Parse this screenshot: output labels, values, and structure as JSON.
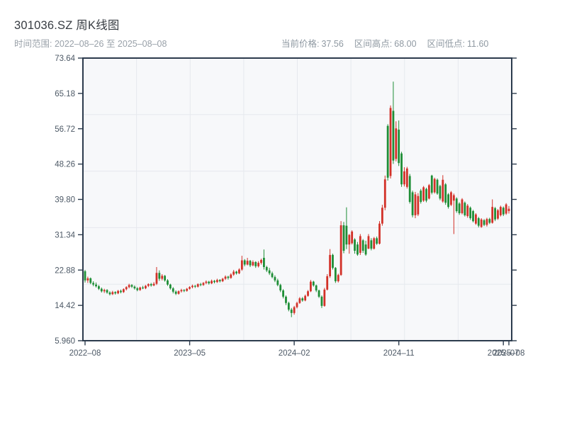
{
  "header": {
    "title": "301036.SZ 周K线图",
    "subtitle": "时间范围: 2022–08–26 至 2025–08–08",
    "stats": [
      {
        "label": "当前价格:",
        "value": "37.56"
      },
      {
        "label": "区间高点:",
        "value": "68.00"
      },
      {
        "label": "区间低点:",
        "value": "11.60"
      }
    ]
  },
  "colors": {
    "up": "#d23128",
    "down": "#1e8e36",
    "grid": "#e6e9ee",
    "plot_bg": "#f7f8fa",
    "spine": "#2c3b4d",
    "tick_label": "#4d5966",
    "title": "#373c42",
    "subtitle": "#99a1a9",
    "page_bg": "#ffffff"
  },
  "chart_data": {
    "type": "candlestick",
    "title": "301036.SZ 周K线图",
    "period": "weekly",
    "x_range_start": "2022-08-26",
    "x_range_end": "2025-08-08",
    "current_price": 37.56,
    "range_high": 68.0,
    "range_low": 11.6,
    "grid": {
      "v_divisions": 8,
      "h_divisions": 5
    },
    "y_axis": {
      "min": 5.96,
      "max": 73.64,
      "tick_labels": [
        "73.64",
        "65.18",
        "56.72",
        "48.26",
        "39.80",
        "31.34",
        "22.88",
        "14.42",
        "5.960"
      ]
    },
    "x_axis": {
      "tick_labels": [
        "2022–08",
        "2023–05",
        "2024–02",
        "2024–11",
        "2025–07",
        "2025–08"
      ],
      "tick_indices": [
        0,
        38,
        76,
        114,
        152,
        154
      ]
    },
    "candles_ohlc": [
      [
        22.6,
        22.9,
        19.9,
        20.4
      ],
      [
        20.4,
        21.3,
        19.8,
        20.9
      ],
      [
        20.9,
        21.1,
        19.5,
        19.8
      ],
      [
        19.8,
        20.2,
        19.0,
        19.4
      ],
      [
        19.4,
        19.9,
        18.7,
        19.0
      ],
      [
        19.0,
        19.3,
        18.1,
        18.4
      ],
      [
        18.4,
        18.7,
        17.5,
        17.8
      ],
      [
        17.8,
        18.4,
        17.4,
        18.1
      ],
      [
        18.1,
        18.3,
        17.2,
        17.5
      ],
      [
        17.5,
        17.8,
        16.8,
        17.1
      ],
      [
        17.1,
        17.9,
        16.9,
        17.6
      ],
      [
        17.6,
        17.8,
        17.0,
        17.3
      ],
      [
        17.3,
        18.1,
        17.1,
        17.9
      ],
      [
        17.9,
        18.2,
        17.3,
        17.6
      ],
      [
        17.6,
        18.5,
        17.4,
        18.3
      ],
      [
        18.3,
        19.0,
        18.0,
        18.8
      ],
      [
        18.8,
        19.6,
        18.5,
        19.3
      ],
      [
        19.3,
        19.5,
        18.6,
        18.9
      ],
      [
        18.9,
        19.2,
        18.2,
        18.5
      ],
      [
        18.5,
        18.8,
        17.8,
        18.1
      ],
      [
        18.1,
        18.9,
        17.9,
        18.7
      ],
      [
        18.7,
        19.1,
        18.3,
        18.5
      ],
      [
        18.5,
        19.3,
        18.3,
        19.1
      ],
      [
        19.1,
        19.7,
        18.8,
        19.5
      ],
      [
        19.5,
        19.8,
        18.9,
        19.2
      ],
      [
        19.2,
        20.0,
        19.0,
        19.6
      ],
      [
        19.6,
        23.6,
        19.3,
        22.2
      ],
      [
        22.2,
        22.8,
        20.3,
        20.8
      ],
      [
        20.8,
        21.9,
        20.4,
        21.5
      ],
      [
        21.5,
        21.7,
        20.1,
        20.4
      ],
      [
        20.4,
        20.7,
        19.1,
        19.4
      ],
      [
        19.4,
        19.6,
        18.2,
        18.5
      ],
      [
        18.5,
        18.8,
        17.3,
        17.7
      ],
      [
        17.7,
        18.0,
        16.9,
        17.2
      ],
      [
        17.2,
        18.0,
        17.0,
        17.8
      ],
      [
        17.8,
        18.4,
        17.5,
        18.1
      ],
      [
        18.1,
        18.3,
        17.6,
        17.9
      ],
      [
        17.9,
        18.6,
        17.7,
        18.4
      ],
      [
        18.4,
        19.0,
        18.2,
        18.8
      ],
      [
        18.8,
        19.4,
        18.5,
        19.1
      ],
      [
        19.1,
        19.3,
        18.6,
        18.9
      ],
      [
        18.9,
        19.7,
        18.7,
        19.5
      ],
      [
        19.5,
        19.8,
        19.0,
        19.3
      ],
      [
        19.3,
        20.0,
        19.1,
        19.8
      ],
      [
        19.8,
        20.4,
        19.5,
        20.1
      ],
      [
        20.1,
        20.3,
        19.4,
        19.7
      ],
      [
        19.7,
        20.6,
        19.5,
        20.3
      ],
      [
        20.3,
        20.5,
        19.7,
        20.0
      ],
      [
        20.0,
        20.8,
        19.8,
        20.5
      ],
      [
        20.5,
        20.7,
        19.9,
        20.2
      ],
      [
        20.2,
        21.0,
        20.0,
        20.8
      ],
      [
        20.8,
        21.6,
        20.5,
        21.3
      ],
      [
        21.3,
        21.5,
        20.6,
        21.0
      ],
      [
        21.0,
        22.1,
        20.8,
        21.8
      ],
      [
        21.8,
        22.9,
        21.5,
        22.5
      ],
      [
        22.5,
        22.7,
        21.8,
        22.1
      ],
      [
        22.1,
        23.3,
        21.9,
        23.0
      ],
      [
        23.0,
        26.3,
        22.7,
        25.2
      ],
      [
        25.2,
        25.5,
        23.8,
        24.2
      ],
      [
        24.2,
        25.8,
        24.0,
        25.1
      ],
      [
        25.1,
        25.3,
        23.6,
        24.0
      ],
      [
        24.0,
        25.2,
        23.8,
        24.8
      ],
      [
        24.8,
        25.0,
        23.4,
        23.8
      ],
      [
        23.8,
        25.0,
        23.5,
        24.6
      ],
      [
        24.6,
        25.6,
        24.2,
        25.3
      ],
      [
        25.8,
        27.8,
        23.0,
        23.6
      ],
      [
        23.6,
        23.9,
        22.4,
        22.8
      ],
      [
        22.8,
        23.4,
        21.7,
        22.1
      ],
      [
        22.1,
        22.5,
        20.9,
        21.2
      ],
      [
        21.2,
        21.6,
        20.0,
        20.4
      ],
      [
        20.4,
        20.8,
        19.0,
        19.3
      ],
      [
        19.3,
        19.6,
        17.6,
        18.0
      ],
      [
        18.0,
        18.3,
        16.1,
        16.5
      ],
      [
        16.5,
        16.8,
        14.5,
        15.0
      ],
      [
        15.0,
        15.3,
        13.0,
        13.4
      ],
      [
        13.4,
        13.8,
        11.6,
        12.6
      ],
      [
        12.6,
        14.3,
        12.2,
        14.0
      ],
      [
        14.0,
        15.3,
        13.7,
        15.0
      ],
      [
        15.0,
        16.4,
        14.8,
        16.1
      ],
      [
        16.1,
        16.4,
        15.3,
        15.6
      ],
      [
        15.6,
        17.0,
        15.4,
        16.7
      ],
      [
        16.7,
        18.1,
        16.5,
        17.8
      ],
      [
        17.8,
        20.5,
        17.6,
        20.1
      ],
      [
        20.1,
        20.3,
        18.9,
        19.2
      ],
      [
        19.2,
        19.4,
        17.6,
        18.0
      ],
      [
        18.0,
        18.2,
        16.2,
        16.5
      ],
      [
        16.5,
        16.8,
        13.8,
        14.3
      ],
      [
        14.3,
        18.6,
        14.1,
        18.2
      ],
      [
        18.2,
        21.9,
        18.0,
        21.4
      ],
      [
        21.4,
        27.9,
        21.0,
        26.5
      ],
      [
        26.5,
        26.8,
        23.0,
        23.4
      ],
      [
        23.4,
        23.6,
        19.8,
        20.2
      ],
      [
        20.2,
        22.0,
        19.9,
        21.7
      ],
      [
        21.7,
        34.6,
        21.5,
        33.6
      ],
      [
        33.6,
        34.4,
        26.9,
        27.5
      ],
      [
        33.5,
        37.9,
        27.9,
        29.0
      ],
      [
        29.0,
        31.5,
        26.8,
        31.3
      ],
      [
        29.3,
        32.4,
        29.0,
        32.1
      ],
      [
        30.2,
        30.5,
        26.8,
        27.5
      ],
      [
        29.0,
        29.6,
        26.3,
        26.6
      ],
      [
        27.0,
        31.5,
        26.5,
        31.0
      ],
      [
        30.0,
        30.3,
        27.0,
        27.5
      ],
      [
        29.0,
        29.9,
        26.3,
        26.6
      ],
      [
        28.0,
        31.5,
        27.9,
        31.0
      ],
      [
        30.0,
        30.5,
        27.6,
        28.0
      ],
      [
        28.0,
        30.8,
        27.8,
        30.5
      ],
      [
        30.5,
        30.9,
        28.9,
        29.2
      ],
      [
        29.2,
        34.6,
        29.0,
        34.0
      ],
      [
        34.0,
        38.5,
        33.5,
        37.8
      ],
      [
        37.8,
        45.5,
        37.2,
        44.6
      ],
      [
        57.4,
        57.8,
        44.3,
        45.0
      ],
      [
        45.4,
        62.3,
        44.8,
        61.7
      ],
      [
        61.0,
        68.0,
        48.3,
        49.1
      ],
      [
        49.5,
        58.5,
        48.9,
        56.8
      ],
      [
        56.5,
        58.7,
        47.8,
        48.5
      ],
      [
        50.8,
        51.2,
        42.8,
        43.4
      ],
      [
        43.4,
        47.5,
        42.9,
        46.5
      ],
      [
        42.8,
        47.6,
        42.4,
        47.2
      ],
      [
        45.4,
        45.9,
        38.8,
        39.2
      ],
      [
        41.5,
        41.9,
        35.5,
        36.0
      ],
      [
        36.0,
        41.6,
        35.3,
        41.0
      ],
      [
        36.2,
        41.3,
        35.8,
        40.6
      ],
      [
        41.9,
        42.3,
        38.8,
        39.2
      ],
      [
        39.5,
        43.0,
        39.2,
        42.7
      ],
      [
        42.3,
        42.6,
        39.1,
        39.5
      ],
      [
        40.0,
        43.5,
        39.8,
        43.2
      ],
      [
        45.5,
        45.7,
        41.0,
        41.4
      ],
      [
        41.5,
        45.0,
        41.2,
        44.7
      ],
      [
        44.5,
        44.8,
        40.9,
        41.2
      ],
      [
        43.0,
        43.3,
        39.6,
        40.0
      ],
      [
        39.3,
        45.6,
        39.0,
        44.5
      ],
      [
        43.4,
        43.7,
        38.5,
        39.0
      ],
      [
        41.0,
        41.3,
        37.6,
        38.0
      ],
      [
        38.5,
        41.8,
        38.2,
        41.5
      ],
      [
        39.5,
        41.2,
        31.5,
        40.8
      ],
      [
        40.0,
        40.3,
        36.6,
        37.0
      ],
      [
        38.8,
        39.1,
        36.1,
        36.5
      ],
      [
        36.5,
        40.1,
        36.2,
        39.8
      ],
      [
        39.0,
        39.3,
        35.7,
        36.0
      ],
      [
        35.8,
        38.7,
        35.4,
        38.3
      ],
      [
        37.8,
        38.1,
        34.9,
        35.3
      ],
      [
        37.0,
        37.3,
        34.3,
        34.6
      ],
      [
        34.0,
        36.5,
        33.7,
        36.2
      ],
      [
        35.3,
        35.6,
        33.1,
        33.5
      ],
      [
        33.2,
        35.3,
        33.0,
        35.0
      ],
      [
        34.8,
        35.1,
        33.4,
        33.7
      ],
      [
        33.7,
        35.4,
        33.3,
        35.1
      ],
      [
        35.1,
        35.4,
        33.9,
        34.2
      ],
      [
        34.2,
        39.8,
        34.0,
        38.0
      ],
      [
        37.7,
        38.0,
        34.6,
        35.0
      ],
      [
        35.2,
        37.5,
        34.9,
        37.2
      ],
      [
        36.0,
        38.3,
        35.7,
        38.0
      ],
      [
        37.8,
        38.1,
        35.8,
        36.2
      ],
      [
        36.4,
        38.9,
        36.1,
        38.6
      ],
      [
        37.0,
        38.2,
        36.4,
        37.56
      ]
    ]
  }
}
